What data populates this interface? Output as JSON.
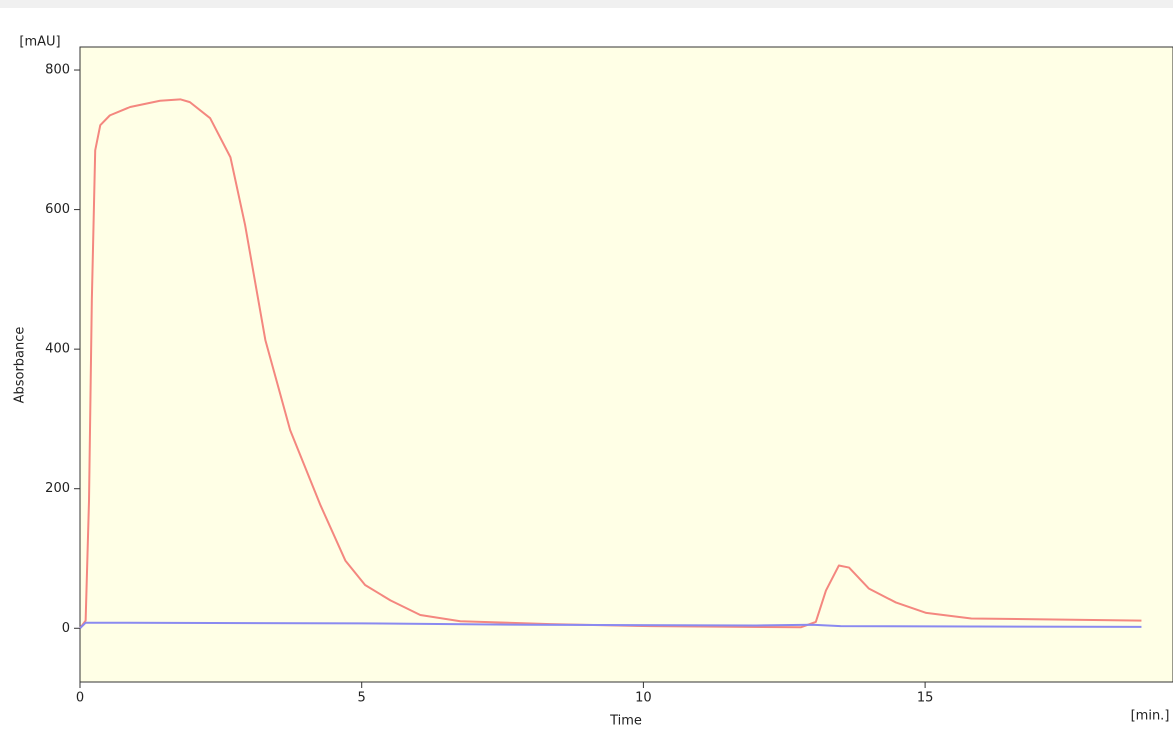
{
  "chart_data": {
    "type": "line",
    "x_label": "Time",
    "x_unit": "[min.]",
    "y_label": "Absorbance",
    "y_unit": "[mAU]",
    "xlim": [
      0,
      19.4
    ],
    "ylim": [
      -77,
      833
    ],
    "xticks": [
      0,
      5,
      10,
      15
    ],
    "yticks": [
      0,
      200,
      400,
      600,
      800
    ],
    "background": "#ffffe6",
    "series": [
      {
        "name": null,
        "color": "#f4877f",
        "x": [
          0,
          0.1,
          0.16,
          0.21,
          0.27,
          0.36,
          0.53,
          0.89,
          1.42,
          1.78,
          1.95,
          2.31,
          2.67,
          2.93,
          3.29,
          3.73,
          4.27,
          4.71,
          5.06,
          5.51,
          6.04,
          6.75,
          8.35,
          10.13,
          12.8,
          13.06,
          13.24,
          13.47,
          13.65,
          14.0,
          14.48,
          15.02,
          15.82,
          18.84
        ],
        "values": [
          0,
          11,
          183,
          470,
          685,
          721,
          735,
          747,
          756,
          758,
          754,
          731,
          675,
          578,
          413,
          284,
          176,
          97,
          62,
          40,
          19,
          10,
          6,
          3,
          1.5,
          9,
          54,
          90,
          87,
          57,
          37,
          22,
          14,
          11
        ]
      },
      {
        "name": null,
        "color": "#8a8af0",
        "x": [
          0,
          0.1,
          5,
          8,
          12,
          13,
          13.5,
          18.84
        ],
        "values": [
          0,
          8,
          7,
          5,
          4,
          5,
          3,
          2
        ]
      }
    ]
  }
}
